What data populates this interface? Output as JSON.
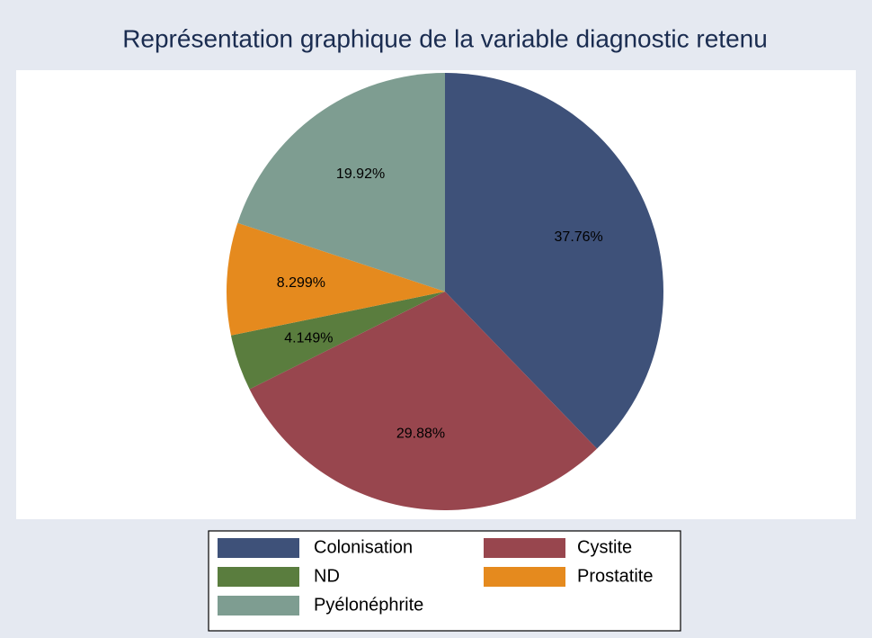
{
  "chart_data": {
    "type": "pie",
    "title": "Représentation graphique de la variable diagnostic retenu",
    "categories": [
      "Colonisation",
      "Cystite",
      "ND",
      "Prostatite",
      "Pyélonéphrite"
    ],
    "values": [
      37.76,
      29.88,
      4.149,
      8.299,
      19.92
    ],
    "value_labels": [
      "37.76%",
      "29.88%",
      "4.149%",
      "8.299%",
      "19.92%"
    ],
    "colors": [
      "#3e5179",
      "#98464e",
      "#5a7d3e",
      "#e58a1e",
      "#7e9d91"
    ],
    "legend": "bottom"
  }
}
